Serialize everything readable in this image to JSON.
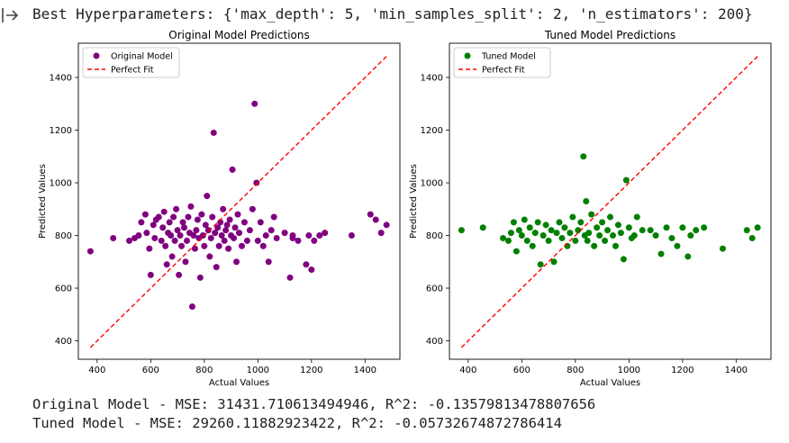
{
  "output": {
    "header": "Best Hyperparameters: {'max_depth': 5, 'min_samples_split': 2, 'n_estimators': 200}",
    "footer_lines": [
      "Original Model - MSE: 31431.710613494946, R^2: -0.13579813478807656",
      "Tuned Model - MSE: 29260.11882923422, R^2: -0.05732674872786414"
    ]
  },
  "chart_data": [
    {
      "type": "scatter",
      "title": "Original Model Predictions",
      "xlabel": "Actual Values",
      "ylabel": "Predicted Values",
      "xlim": [
        330,
        1530
      ],
      "ylim": [
        330,
        1530
      ],
      "xticks": [
        400,
        600,
        800,
        1000,
        1200,
        1400
      ],
      "yticks": [
        400,
        600,
        800,
        1000,
        1200,
        1400
      ],
      "legend_position": "upper-left",
      "series": [
        {
          "name": "Original Model",
          "kind": "points",
          "color": "#800080",
          "points": [
            [
              375,
              740
            ],
            [
              460,
              790
            ],
            [
              520,
              780
            ],
            [
              540,
              790
            ],
            [
              555,
              800
            ],
            [
              565,
              850
            ],
            [
              580,
              880
            ],
            [
              585,
              810
            ],
            [
              595,
              750
            ],
            [
              600,
              650
            ],
            [
              610,
              840
            ],
            [
              615,
              790
            ],
            [
              620,
              860
            ],
            [
              630,
              870
            ],
            [
              640,
              780
            ],
            [
              645,
              830
            ],
            [
              650,
              890
            ],
            [
              655,
              760
            ],
            [
              660,
              690
            ],
            [
              665,
              810
            ],
            [
              670,
              850
            ],
            [
              675,
              800
            ],
            [
              680,
              720
            ],
            [
              685,
              870
            ],
            [
              690,
              780
            ],
            [
              695,
              900
            ],
            [
              700,
              820
            ],
            [
              705,
              650
            ],
            [
              710,
              800
            ],
            [
              715,
              760
            ],
            [
              720,
              850
            ],
            [
              725,
              830
            ],
            [
              730,
              700
            ],
            [
              735,
              780
            ],
            [
              740,
              870
            ],
            [
              745,
              810
            ],
            [
              750,
              910
            ],
            [
              755,
              530
            ],
            [
              760,
              800
            ],
            [
              765,
              750
            ],
            [
              770,
              820
            ],
            [
              775,
              860
            ],
            [
              780,
              790
            ],
            [
              785,
              640
            ],
            [
              790,
              880
            ],
            [
              795,
              800
            ],
            [
              800,
              760
            ],
            [
              805,
              840
            ],
            [
              810,
              950
            ],
            [
              815,
              820
            ],
            [
              820,
              720
            ],
            [
              825,
              790
            ],
            [
              830,
              870
            ],
            [
              835,
              1190
            ],
            [
              840,
              810
            ],
            [
              845,
              680
            ],
            [
              850,
              830
            ],
            [
              855,
              760
            ],
            [
              860,
              850
            ],
            [
              865,
              800
            ],
            [
              870,
              900
            ],
            [
              875,
              780
            ],
            [
              880,
              820
            ],
            [
              885,
              840
            ],
            [
              890,
              750
            ],
            [
              895,
              860
            ],
            [
              900,
              800
            ],
            [
              905,
              1050
            ],
            [
              910,
              790
            ],
            [
              915,
              830
            ],
            [
              920,
              700
            ],
            [
              925,
              880
            ],
            [
              930,
              810
            ],
            [
              940,
              760
            ],
            [
              950,
              850
            ],
            [
              960,
              780
            ],
            [
              970,
              820
            ],
            [
              980,
              900
            ],
            [
              988,
              1300
            ],
            [
              995,
              1000
            ],
            [
              1000,
              780
            ],
            [
              1010,
              850
            ],
            [
              1020,
              760
            ],
            [
              1030,
              800
            ],
            [
              1040,
              700
            ],
            [
              1050,
              820
            ],
            [
              1060,
              870
            ],
            [
              1070,
              790
            ],
            [
              1100,
              810
            ],
            [
              1120,
              640
            ],
            [
              1130,
              800
            ],
            [
              1150,
              780
            ],
            [
              1180,
              690
            ],
            [
              1200,
              670
            ],
            [
              1210,
              780
            ],
            [
              1230,
              800
            ],
            [
              1250,
              810
            ],
            [
              1350,
              800
            ],
            [
              1440,
              860
            ],
            [
              1460,
              810
            ],
            [
              1480,
              840
            ],
            [
              1420,
              880
            ],
            [
              1130,
              790
            ],
            [
              1190,
              800
            ]
          ]
        },
        {
          "name": "Perfect Fit",
          "kind": "line",
          "color": "#ff0000",
          "x": [
            375,
            1480
          ],
          "y": [
            375,
            1480
          ]
        }
      ]
    },
    {
      "type": "scatter",
      "title": "Tuned Model Predictions",
      "xlabel": "Actual Values",
      "ylabel": "Predicted Values",
      "xlim": [
        330,
        1530
      ],
      "ylim": [
        330,
        1530
      ],
      "xticks": [
        400,
        600,
        800,
        1000,
        1200,
        1400
      ],
      "yticks": [
        400,
        600,
        800,
        1000,
        1200,
        1400
      ],
      "legend_position": "upper-left",
      "series": [
        {
          "name": "Tuned Model",
          "kind": "points",
          "color": "#008000",
          "points": [
            [
              375,
              820
            ],
            [
              455,
              830
            ],
            [
              530,
              790
            ],
            [
              550,
              780
            ],
            [
              560,
              810
            ],
            [
              570,
              850
            ],
            [
              580,
              740
            ],
            [
              590,
              820
            ],
            [
              600,
              800
            ],
            [
              610,
              860
            ],
            [
              620,
              780
            ],
            [
              630,
              830
            ],
            [
              640,
              760
            ],
            [
              650,
              810
            ],
            [
              660,
              850
            ],
            [
              670,
              690
            ],
            [
              680,
              800
            ],
            [
              690,
              840
            ],
            [
              700,
              780
            ],
            [
              710,
              820
            ],
            [
              720,
              700
            ],
            [
              730,
              810
            ],
            [
              740,
              850
            ],
            [
              750,
              790
            ],
            [
              760,
              830
            ],
            [
              770,
              760
            ],
            [
              780,
              810
            ],
            [
              790,
              870
            ],
            [
              800,
              780
            ],
            [
              810,
              820
            ],
            [
              820,
              850
            ],
            [
              830,
              1100
            ],
            [
              835,
              800
            ],
            [
              840,
              930
            ],
            [
              845,
              780
            ],
            [
              850,
              810
            ],
            [
              860,
              880
            ],
            [
              870,
              760
            ],
            [
              880,
              830
            ],
            [
              890,
              800
            ],
            [
              900,
              850
            ],
            [
              910,
              780
            ],
            [
              920,
              820
            ],
            [
              930,
              870
            ],
            [
              940,
              800
            ],
            [
              950,
              760
            ],
            [
              960,
              840
            ],
            [
              970,
              810
            ],
            [
              980,
              710
            ],
            [
              990,
              1010
            ],
            [
              1000,
              830
            ],
            [
              1010,
              790
            ],
            [
              1020,
              800
            ],
            [
              1030,
              870
            ],
            [
              1050,
              820
            ],
            [
              1080,
              820
            ],
            [
              1100,
              800
            ],
            [
              1120,
              730
            ],
            [
              1140,
              830
            ],
            [
              1160,
              790
            ],
            [
              1180,
              760
            ],
            [
              1200,
              830
            ],
            [
              1220,
              720
            ],
            [
              1230,
              800
            ],
            [
              1250,
              820
            ],
            [
              1280,
              830
            ],
            [
              1350,
              750
            ],
            [
              1440,
              820
            ],
            [
              1460,
              790
            ],
            [
              1480,
              830
            ]
          ]
        },
        {
          "name": "Perfect Fit",
          "kind": "line",
          "color": "#ff0000",
          "x": [
            375,
            1480
          ],
          "y": [
            375,
            1480
          ]
        }
      ]
    }
  ]
}
